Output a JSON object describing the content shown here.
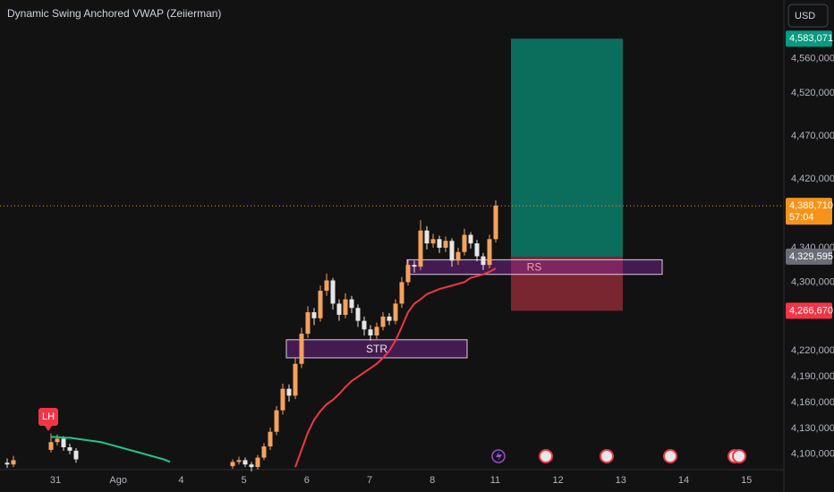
{
  "header": {
    "title": "Dynamic Swing Anchored VWAP (Zeiierman)",
    "currency": "USD"
  },
  "chart_data": {
    "type": "candlestick",
    "xtick_labels": [
      "31",
      "Ago",
      "4",
      "5",
      "6",
      "7",
      "8",
      "11",
      "12",
      "13",
      "14",
      "15"
    ],
    "up_color": "#f5a25d",
    "down_color": "#e6e6e6",
    "open": [
      4090000,
      4088000,
      null,
      null,
      null,
      null,
      null,
      4105000,
      4114000,
      4118000,
      4108000,
      4104000,
      null,
      null,
      null,
      null,
      null,
      null,
      null,
      null,
      null,
      null,
      null,
      null,
      null,
      null,
      null,
      null,
      null,
      null,
      null,
      null,
      null,
      null,
      null,
      null,
      4086000,
      4091000,
      4093000,
      4088000,
      4085000,
      4096000,
      4109000,
      4126000,
      4151000,
      4176000,
      4168000,
      4205000,
      4240000,
      4265000,
      4258000,
      4290000,
      4302000,
      4275000,
      4262000,
      4280000,
      4270000,
      4255000,
      4245000,
      4238000,
      4248000,
      4260000,
      4255000,
      4275000,
      4300000,
      4320000,
      4318000,
      4360000,
      4345000,
      4350000,
      4340000,
      4348000,
      4325000,
      4335000,
      4355000,
      4345000,
      4330000,
      4320000,
      4350000
    ],
    "high": [
      4095000,
      4098000,
      null,
      null,
      null,
      null,
      null,
      4124000,
      4123000,
      4121000,
      4112000,
      4107000,
      null,
      null,
      null,
      null,
      null,
      null,
      null,
      null,
      null,
      null,
      null,
      null,
      null,
      null,
      null,
      null,
      null,
      null,
      null,
      null,
      null,
      null,
      null,
      null,
      4094000,
      4097000,
      4096000,
      4091000,
      4099000,
      4113000,
      4131000,
      4156000,
      4182000,
      4181000,
      4212000,
      4247000,
      4272000,
      4270000,
      4296000,
      4310000,
      4305000,
      4280000,
      4287000,
      4284000,
      4274000,
      4260000,
      4250000,
      4253000,
      4265000,
      4264000,
      4280000,
      4306000,
      4326000,
      4325000,
      4372000,
      4365000,
      4356000,
      4354000,
      4353000,
      4351000,
      4340000,
      4362000,
      4358000,
      4349000,
      4334000,
      4355000,
      4395000
    ],
    "low": [
      4084000,
      4085000,
      null,
      null,
      null,
      null,
      null,
      4102000,
      4110000,
      4104000,
      4100000,
      4090000,
      null,
      null,
      null,
      null,
      null,
      null,
      null,
      null,
      null,
      null,
      null,
      null,
      null,
      null,
      null,
      null,
      null,
      null,
      null,
      null,
      null,
      null,
      null,
      null,
      4083000,
      4088000,
      4085000,
      4080000,
      4082000,
      4093000,
      4105000,
      4122000,
      4146000,
      4161000,
      4164000,
      4200000,
      4235000,
      4250000,
      4254000,
      4284000,
      4268000,
      4255000,
      4258000,
      4264000,
      4248000,
      4238000,
      4232000,
      4234000,
      4244000,
      4250000,
      4251000,
      4270000,
      4296000,
      4311000,
      4314000,
      4338000,
      4340000,
      4334000,
      4335000,
      4318000,
      4320000,
      4331000,
      4339000,
      4324000,
      4314000,
      4316000,
      4346000
    ],
    "close": [
      4088000,
      4093000,
      null,
      null,
      null,
      null,
      null,
      4114000,
      4118000,
      4108000,
      4104000,
      4094000,
      null,
      null,
      null,
      null,
      null,
      null,
      null,
      null,
      null,
      null,
      null,
      null,
      null,
      null,
      null,
      null,
      null,
      null,
      null,
      null,
      null,
      null,
      null,
      null,
      4091000,
      4093000,
      4088000,
      4085000,
      4096000,
      4109000,
      4126000,
      4151000,
      4176000,
      4168000,
      4205000,
      4240000,
      4265000,
      4258000,
      4290000,
      4302000,
      4275000,
      4262000,
      4280000,
      4270000,
      4255000,
      4245000,
      4238000,
      4248000,
      4260000,
      4255000,
      4275000,
      4300000,
      4320000,
      4318000,
      4360000,
      4345000,
      4350000,
      4340000,
      4348000,
      4325000,
      4335000,
      4355000,
      4345000,
      4330000,
      4320000,
      4350000,
      4389000
    ],
    "lines": [
      {
        "color": "#22c88a",
        "values": [
          null,
          null,
          null,
          null,
          null,
          null,
          null,
          4120000,
          4120000,
          4119000,
          4119000,
          4118000,
          4117000,
          4116000,
          4115000,
          4114000,
          4112000,
          4110000,
          4108000,
          4106000,
          4104000,
          4102000,
          4100000,
          4098000,
          4096000,
          4094000,
          4091000,
          null,
          null,
          null,
          null,
          null,
          null,
          null,
          null,
          null,
          null,
          null,
          null,
          null,
          null,
          null,
          null,
          null,
          null,
          null,
          null,
          null,
          null,
          null,
          null,
          null,
          null,
          null,
          null,
          null,
          null,
          null,
          null,
          null,
          null,
          null,
          null,
          null,
          null,
          null,
          null,
          null,
          null,
          null,
          null,
          null,
          null,
          null,
          null,
          null,
          null,
          null,
          null
        ]
      },
      {
        "color": "#f23645",
        "values": [
          null,
          null,
          null,
          null,
          null,
          null,
          null,
          null,
          null,
          null,
          null,
          null,
          null,
          null,
          null,
          null,
          null,
          null,
          null,
          null,
          null,
          null,
          null,
          null,
          null,
          null,
          null,
          null,
          null,
          null,
          null,
          null,
          null,
          null,
          null,
          null,
          null,
          null,
          null,
          null,
          null,
          null,
          null,
          null,
          null,
          null,
          4085000,
          4105000,
          4125000,
          4140000,
          4150000,
          4158000,
          4163000,
          4170000,
          4178000,
          4185000,
          4190000,
          4195000,
          4200000,
          4205000,
          4212000,
          4220000,
          4232000,
          4248000,
          4265000,
          4275000,
          4280000,
          4286000,
          4289000,
          4292000,
          4294000,
          4296000,
          4298000,
          4300000,
          4305000,
          4307000,
          4309000,
          4312000,
          4316000
        ]
      }
    ],
    "ylim": [
      4082000,
      4628000
    ],
    "yticks": [
      {
        "value": 4560000,
        "label": "4,560,000"
      },
      {
        "value": 4520000,
        "label": "4,520,000"
      },
      {
        "value": 4470000,
        "label": "4,470,000"
      },
      {
        "value": 4420000,
        "label": "4,420,000"
      },
      {
        "value": 4340000,
        "label": "4,340,000"
      },
      {
        "value": 4300000,
        "label": "4,300,000"
      },
      {
        "value": 4220000,
        "label": "4,220,000"
      },
      {
        "value": 4190000,
        "label": "4,190,000"
      },
      {
        "value": 4160000,
        "label": "4,160,000"
      },
      {
        "value": 4130000,
        "label": "4,130,000"
      },
      {
        "value": 4100000,
        "label": "4,100,000"
      }
    ],
    "grid": false,
    "zones": [
      {
        "label": "STR",
        "high": 4233000,
        "low": 4212000
      },
      {
        "label": "RS",
        "high": 4326000,
        "low": 4309000
      }
    ],
    "marker": "LH",
    "position": {
      "target": {
        "value": 4583071,
        "label": "4,583,071",
        "color": "#089981"
      },
      "entry": {
        "value": 4329595,
        "label": "4,329,595",
        "color": "#6a6d78"
      },
      "stop": {
        "value": 4266670,
        "label": "4,266,670",
        "color": "#f23645"
      }
    },
    "last_price": {
      "value": 4388710,
      "label": "4,388,710",
      "countdown": "57:04",
      "color": "#f7931a"
    }
  }
}
